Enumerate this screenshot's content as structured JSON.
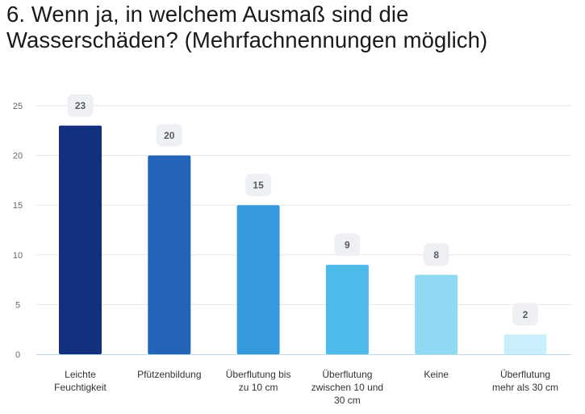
{
  "title": "6. Wenn ja, in welchem Ausmaß sind die Wasserschäden? (Mehrfachnennungen möglich)",
  "chart_data": {
    "type": "bar",
    "title": "6. Wenn ja, in welchem Ausmaß sind die Wasserschäden? (Mehrfachnennungen möglich)",
    "categories": [
      [
        "Leichte",
        "Feuchtigkeit"
      ],
      [
        "Pfützenbildung"
      ],
      [
        "Überflutung bis",
        "zu 10 cm"
      ],
      [
        "Überflutung",
        "zwischen 10 und",
        "30 cm"
      ],
      [
        "Keine"
      ],
      [
        "Überflutung",
        "mehr als 30 cm"
      ]
    ],
    "values": [
      23,
      20,
      15,
      9,
      8,
      2
    ],
    "colors": [
      "#13307f",
      "#2364b8",
      "#3699dc",
      "#4cbbe9",
      "#8fd9f3",
      "#c9f0fa"
    ],
    "ylim": [
      0,
      25
    ],
    "yticks": [
      0,
      5,
      10,
      15,
      20,
      25
    ],
    "xlabel": "",
    "ylabel": "",
    "grid": true,
    "data_labels": true
  }
}
